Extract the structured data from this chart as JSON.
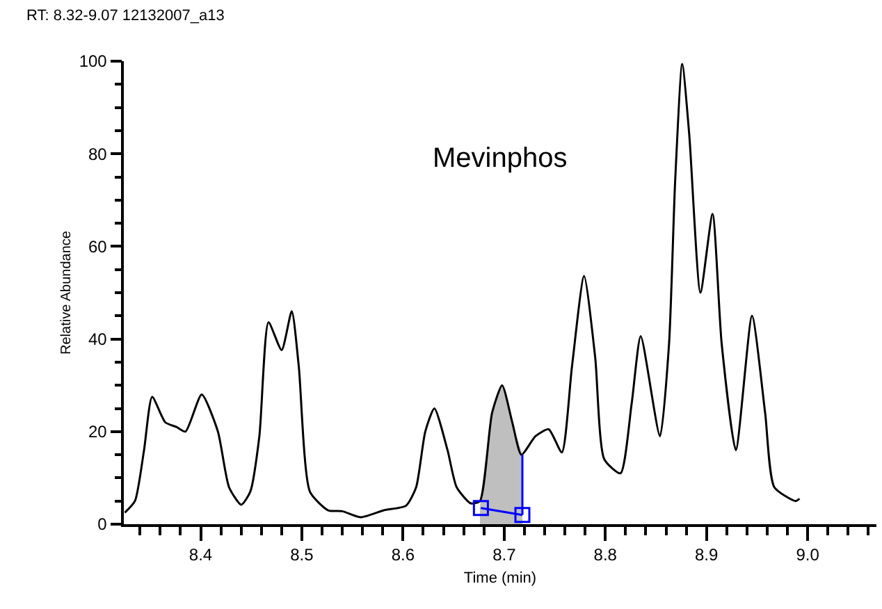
{
  "chart_data": {
    "type": "line",
    "title": "RT: 8.32-9.07 12132007_a13",
    "xlabel": "Time (min)",
    "ylabel": "Relative Abundance",
    "annotations": [
      "Mevinphos"
    ],
    "xlim": [
      8.324,
      9.068
    ],
    "ylim": [
      0,
      100
    ],
    "xticks": [
      {
        "value": 8.34,
        "label": null
      },
      {
        "value": 8.36,
        "label": null
      },
      {
        "value": 8.38,
        "label": null
      },
      {
        "value": 8.4,
        "label": "8.4"
      },
      {
        "value": 8.42,
        "label": null
      },
      {
        "value": 8.44,
        "label": null
      },
      {
        "value": 8.46,
        "label": null
      },
      {
        "value": 8.48,
        "label": null
      },
      {
        "value": 8.5,
        "label": "8.5"
      },
      {
        "value": 8.52,
        "label": null
      },
      {
        "value": 8.54,
        "label": null
      },
      {
        "value": 8.56,
        "label": null
      },
      {
        "value": 8.58,
        "label": null
      },
      {
        "value": 8.6,
        "label": "8.6"
      },
      {
        "value": 8.62,
        "label": null
      },
      {
        "value": 8.64,
        "label": null
      },
      {
        "value": 8.66,
        "label": null
      },
      {
        "value": 8.68,
        "label": null
      },
      {
        "value": 8.7,
        "label": "8.7"
      },
      {
        "value": 8.72,
        "label": null
      },
      {
        "value": 8.74,
        "label": null
      },
      {
        "value": 8.76,
        "label": null
      },
      {
        "value": 8.78,
        "label": null
      },
      {
        "value": 8.8,
        "label": "8.8"
      },
      {
        "value": 8.82,
        "label": null
      },
      {
        "value": 8.84,
        "label": null
      },
      {
        "value": 8.86,
        "label": null
      },
      {
        "value": 8.88,
        "label": null
      },
      {
        "value": 8.9,
        "label": "8.9"
      },
      {
        "value": 8.92,
        "label": null
      },
      {
        "value": 8.94,
        "label": null
      },
      {
        "value": 8.96,
        "label": null
      },
      {
        "value": 8.98,
        "label": null
      },
      {
        "value": 9.0,
        "label": "9.0"
      },
      {
        "value": 9.02,
        "label": null
      },
      {
        "value": 9.04,
        "label": null
      },
      {
        "value": 9.06,
        "label": null
      }
    ],
    "yticks": [
      0,
      {
        "value": 5,
        "label": null
      },
      {
        "value": 10,
        "label": null
      },
      {
        "value": 15,
        "label": null
      },
      20,
      {
        "value": 25,
        "label": null
      },
      {
        "value": 30,
        "label": null
      },
      {
        "value": 35,
        "label": null
      },
      40,
      {
        "value": 45,
        "label": null
      },
      {
        "value": 50,
        "label": null
      },
      {
        "value": 55,
        "label": null
      },
      60,
      {
        "value": 65,
        "label": null
      },
      {
        "value": 70,
        "label": null
      },
      {
        "value": 75,
        "label": null
      },
      80,
      {
        "value": 85,
        "label": null
      },
      {
        "value": 90,
        "label": null
      },
      {
        "value": 95,
        "label": null
      },
      100
    ],
    "series": [
      {
        "type": "area",
        "color": "#bfbfbf",
        "x": [
          8.676,
          8.688,
          8.698,
          8.708,
          8.718
        ],
        "values": [
          3.5,
          24,
          30,
          22,
          15
        ],
        "marker": "none"
      },
      {
        "color": "#000000",
        "marker": "none",
        "line_style": "solid",
        "x": [
          8.325,
          8.335,
          8.344,
          8.352,
          8.365,
          8.376,
          8.385,
          8.401,
          8.417,
          8.428,
          8.44,
          8.449,
          8.458,
          8.467,
          8.48,
          8.49,
          8.497,
          8.508,
          8.526,
          8.54,
          8.558,
          8.581,
          8.603,
          8.613,
          8.622,
          8.631,
          8.644,
          8.653,
          8.667,
          8.676,
          8.688,
          8.698,
          8.708,
          8.717,
          8.731,
          8.744,
          8.757,
          8.767,
          8.779,
          8.79,
          8.799,
          8.815,
          8.826,
          8.835,
          8.854,
          8.863,
          8.869,
          8.876,
          8.883,
          8.894,
          8.906,
          8.915,
          8.929,
          8.945,
          8.958,
          8.967,
          8.988,
          8.992
        ],
        "values": [
          2.5,
          5,
          16,
          27.5,
          22,
          21,
          20,
          28,
          20,
          8,
          4.2,
          7,
          19,
          43.6,
          37.6,
          46,
          34,
          7,
          3,
          2.8,
          1.5,
          3,
          4,
          8,
          20,
          25,
          16,
          8,
          4.5,
          5,
          24,
          30,
          22,
          15,
          19,
          20.5,
          15.5,
          34,
          53.6,
          36,
          14,
          11,
          26,
          40.6,
          19,
          39,
          74,
          99.4,
          84,
          50,
          67,
          39,
          16,
          45,
          24,
          8,
          5,
          5.5
        ]
      },
      {
        "type": "line",
        "color": "#0000ff",
        "marker": "square",
        "line_style": "solid",
        "x": [
          8.677,
          8.718
        ],
        "values": [
          3.5,
          2
        ]
      },
      {
        "type": "line",
        "color": "#0000ff",
        "marker": "none",
        "line_style": "solid",
        "x": [
          8.718,
          8.718
        ],
        "values": [
          2,
          15
        ]
      }
    ]
  }
}
